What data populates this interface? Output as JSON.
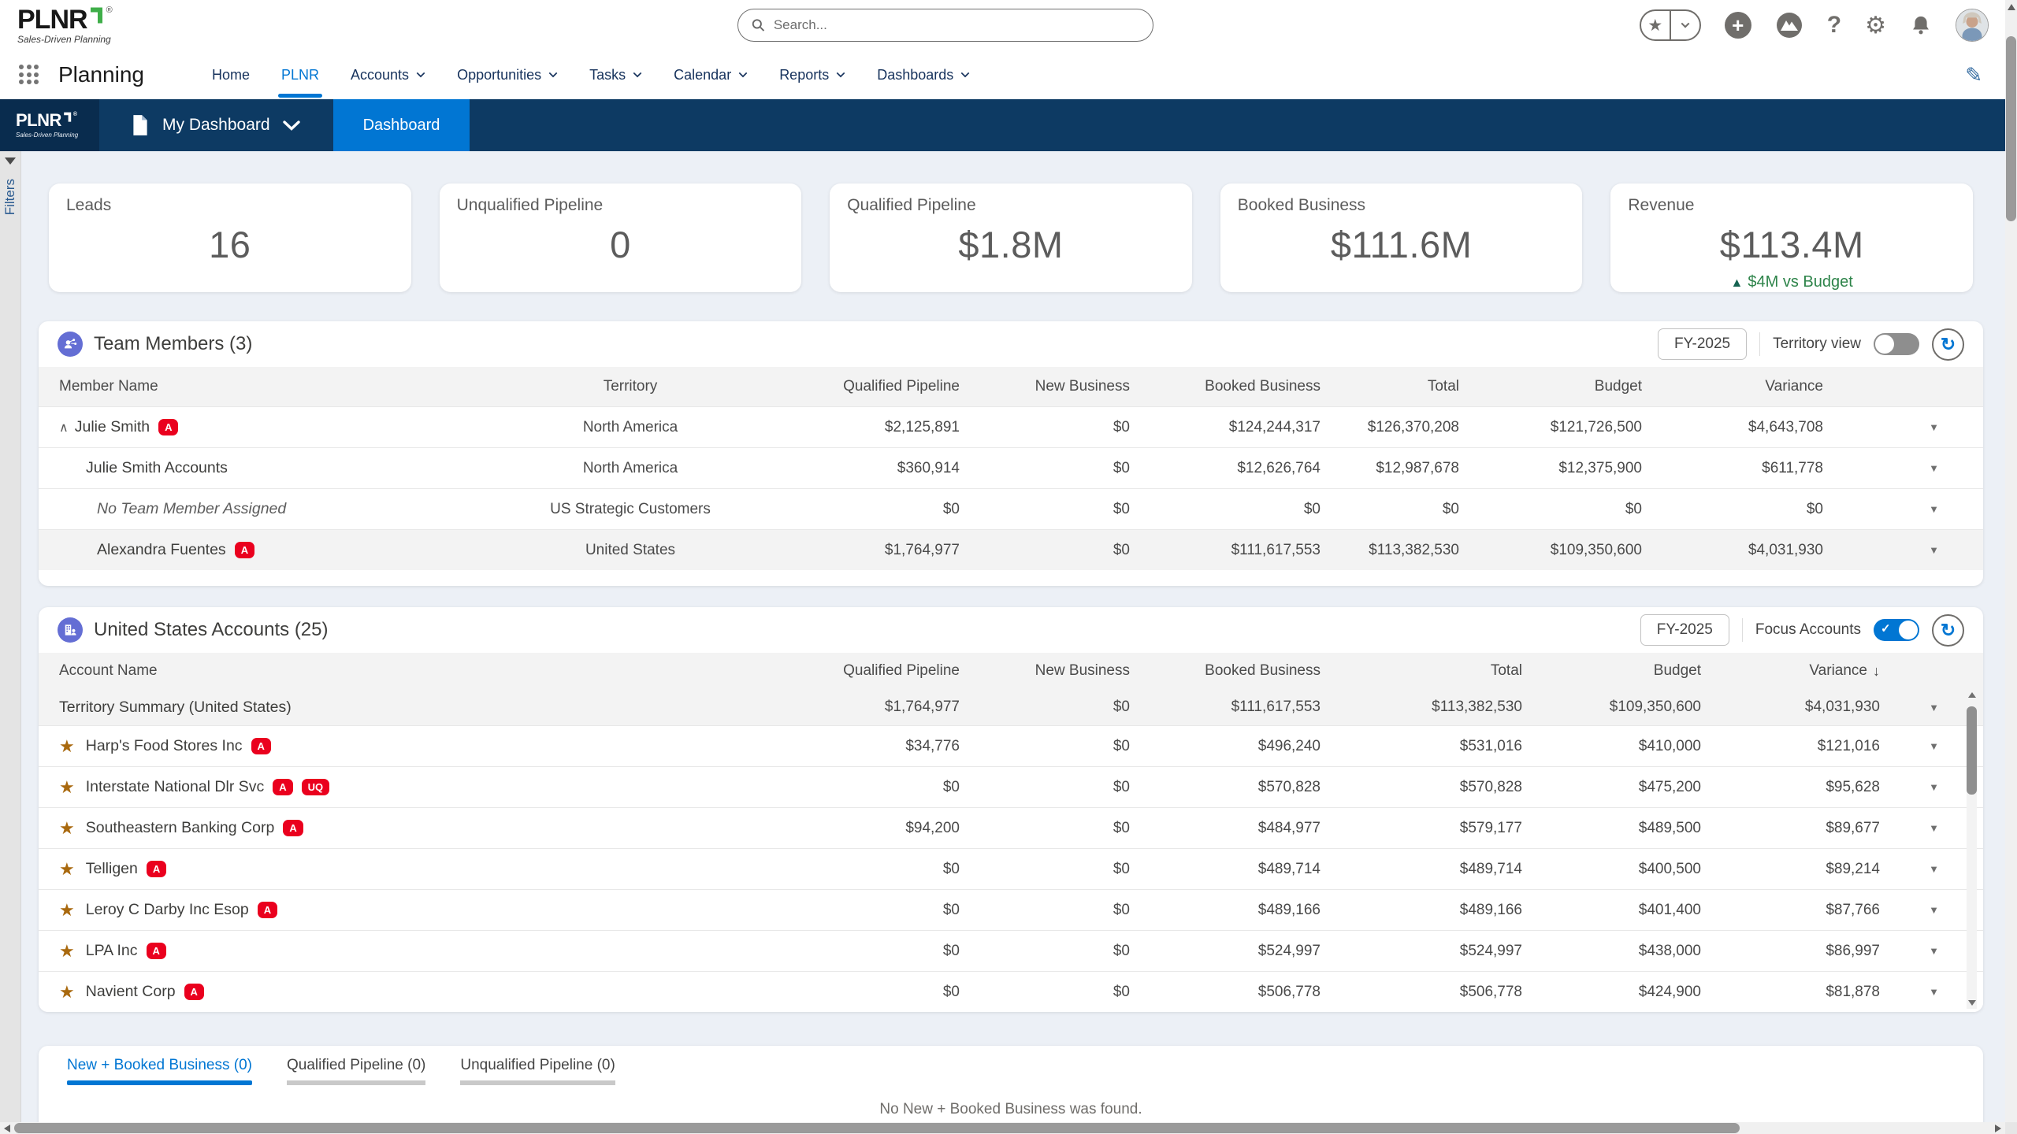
{
  "colors": {
    "accent": "#0176d3",
    "navy": "#0d3a63",
    "navy_dark": "#092c4e",
    "badge_red": "#ea001e",
    "success_green": "#2e844a",
    "star_gold": "#a9690e",
    "entity_indigo": "#646ed4",
    "brand_green": "#3fae49"
  },
  "header": {
    "logo": {
      "brand": "PLNR",
      "reg": "®",
      "tagline": "Sales-Driven Planning"
    },
    "search": {
      "placeholder": "Search..."
    },
    "icons": [
      "favorites-star",
      "favorites-dropdown",
      "global-add",
      "trailhead",
      "help",
      "setup-gear",
      "notifications-bell",
      "profile-avatar"
    ]
  },
  "nav": {
    "app_name": "Planning",
    "tabs": [
      {
        "label": "Home",
        "active": false,
        "has_menu": false
      },
      {
        "label": "PLNR",
        "active": true,
        "has_menu": false
      },
      {
        "label": "Accounts",
        "active": false,
        "has_menu": true
      },
      {
        "label": "Opportunities",
        "active": false,
        "has_menu": true
      },
      {
        "label": "Tasks",
        "active": false,
        "has_menu": true
      },
      {
        "label": "Calendar",
        "active": false,
        "has_menu": true
      },
      {
        "label": "Reports",
        "active": false,
        "has_menu": true
      },
      {
        "label": "Dashboards",
        "active": false,
        "has_menu": true
      }
    ],
    "edit_icon": "pencil"
  },
  "subheader": {
    "logo": {
      "brand": "PLNR",
      "reg": "®",
      "tagline": "Sales-Driven Planning"
    },
    "selector_label": "My Dashboard",
    "tab_label": "Dashboard"
  },
  "filters": {
    "label": "Filters"
  },
  "kpis": [
    {
      "label": "Leads",
      "value": "16"
    },
    {
      "label": "Unqualified Pipeline",
      "value": "0"
    },
    {
      "label": "Qualified Pipeline",
      "value": "$1.8M"
    },
    {
      "label": "Booked Business",
      "value": "$111.6M"
    },
    {
      "label": "Revenue",
      "value": "$113.4M",
      "delta": "$4M vs Budget",
      "delta_direction": "up"
    }
  ],
  "team": {
    "title": "Team Members (3)",
    "fiscal_year": "FY-2025",
    "toggle_label": "Territory view",
    "toggle_on": false,
    "columns": [
      "Member Name",
      "Territory",
      "Qualified Pipeline",
      "New Business",
      "Booked Business",
      "Total",
      "Budget",
      "Variance"
    ],
    "rows": [
      {
        "name": "Julie Smith",
        "badges": [
          "A"
        ],
        "expanded": true,
        "indent": 0,
        "italic": false,
        "shaded": false,
        "territory": "North America",
        "values": [
          "$2,125,891",
          "$0",
          "$124,244,317",
          "$126,370,208",
          "$121,726,500",
          "$4,643,708"
        ]
      },
      {
        "name": "Julie Smith Accounts",
        "badges": [],
        "expanded": false,
        "indent": 1,
        "italic": false,
        "shaded": false,
        "territory": "North America",
        "values": [
          "$360,914",
          "$0",
          "$12,626,764",
          "$12,987,678",
          "$12,375,900",
          "$611,778"
        ]
      },
      {
        "name": "No Team Member Assigned",
        "badges": [],
        "expanded": false,
        "indent": 2,
        "italic": true,
        "shaded": false,
        "territory": "US Strategic Customers",
        "values": [
          "$0",
          "$0",
          "$0",
          "$0",
          "$0",
          "$0"
        ]
      },
      {
        "name": "Alexandra Fuentes",
        "badges": [
          "A"
        ],
        "expanded": false,
        "indent": 2,
        "italic": false,
        "shaded": true,
        "territory": "United States",
        "values": [
          "$1,764,977",
          "$0",
          "$111,617,553",
          "$113,382,530",
          "$109,350,600",
          "$4,031,930"
        ]
      }
    ]
  },
  "accounts": {
    "title": "United States Accounts (25)",
    "fiscal_year": "FY-2025",
    "toggle_label": "Focus Accounts",
    "toggle_on": true,
    "columns": [
      "Account Name",
      "Qualified Pipeline",
      "New Business",
      "Booked Business",
      "Total",
      "Budget",
      "Variance"
    ],
    "sort": {
      "column": "Variance",
      "direction": "desc"
    },
    "summary_row": {
      "name": "Territory Summary (United States)",
      "values": [
        "$1,764,977",
        "$0",
        "$111,617,553",
        "$113,382,530",
        "$109,350,600",
        "$4,031,930"
      ]
    },
    "rows": [
      {
        "name": "Harp's Food Stores Inc",
        "starred": true,
        "badges": [
          "A"
        ],
        "values": [
          "$34,776",
          "$0",
          "$496,240",
          "$531,016",
          "$410,000",
          "$121,016"
        ]
      },
      {
        "name": "Interstate National Dlr Svc",
        "starred": true,
        "badges": [
          "A",
          "UQ"
        ],
        "values": [
          "$0",
          "$0",
          "$570,828",
          "$570,828",
          "$475,200",
          "$95,628"
        ]
      },
      {
        "name": "Southeastern Banking Corp",
        "starred": true,
        "badges": [
          "A"
        ],
        "values": [
          "$94,200",
          "$0",
          "$484,977",
          "$579,177",
          "$489,500",
          "$89,677"
        ]
      },
      {
        "name": "Telligen",
        "starred": true,
        "badges": [
          "A"
        ],
        "values": [
          "$0",
          "$0",
          "$489,714",
          "$489,714",
          "$400,500",
          "$89,214"
        ]
      },
      {
        "name": "Leroy C Darby Inc Esop",
        "starred": true,
        "badges": [
          "A"
        ],
        "values": [
          "$0",
          "$0",
          "$489,166",
          "$489,166",
          "$401,400",
          "$87,766"
        ]
      },
      {
        "name": "LPA Inc",
        "starred": true,
        "badges": [
          "A"
        ],
        "values": [
          "$0",
          "$0",
          "$524,997",
          "$524,997",
          "$438,000",
          "$86,997"
        ]
      },
      {
        "name": "Navient Corp",
        "starred": true,
        "badges": [
          "A"
        ],
        "values": [
          "$0",
          "$0",
          "$506,778",
          "$506,778",
          "$424,900",
          "$81,878"
        ]
      }
    ]
  },
  "bottom": {
    "tabs": [
      {
        "label": "New + Booked Business (0)",
        "active": true
      },
      {
        "label": "Qualified Pipeline (0)",
        "active": false
      },
      {
        "label": "Unqualified Pipeline (0)",
        "active": false
      }
    ],
    "empty_message": "No New + Booked Business was found."
  }
}
